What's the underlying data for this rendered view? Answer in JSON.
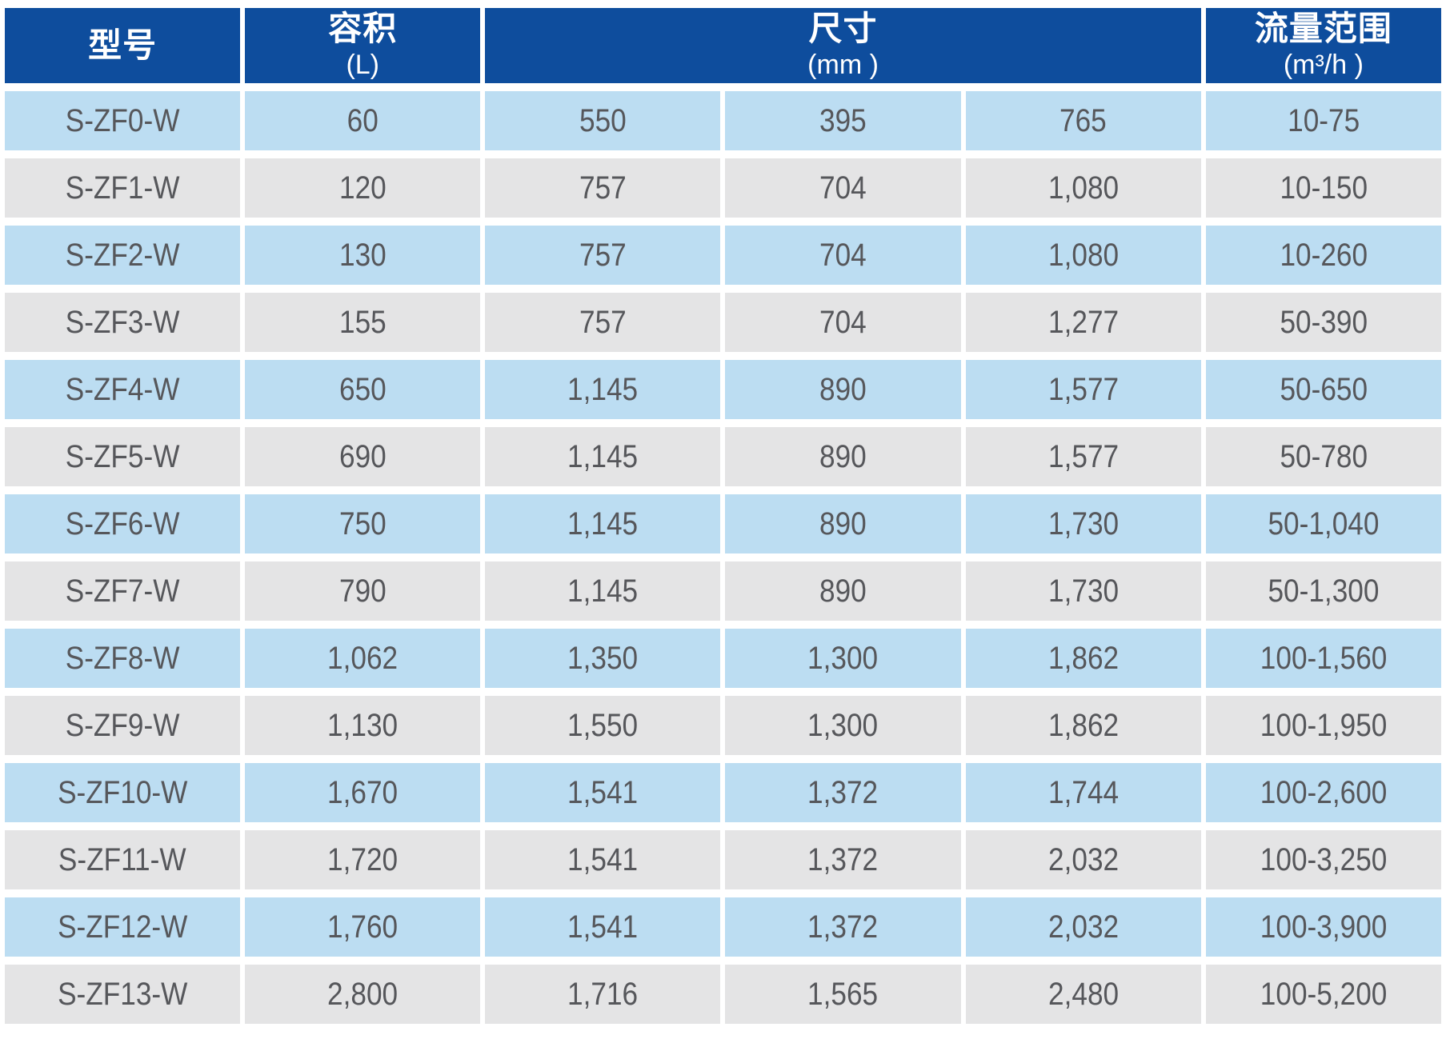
{
  "table": {
    "colors": {
      "header_bg": "#0E4D9D",
      "row_blue": "#BCDDF2",
      "row_gray": "#E4E4E5",
      "cell_text": "#56575B",
      "header_text": "#FFFFFF"
    },
    "header": {
      "columns": [
        {
          "title": "型号",
          "subtitle": "",
          "colspan": "1"
        },
        {
          "title": "容积",
          "subtitle": "(L)",
          "colspan": "1"
        },
        {
          "title": "尺寸",
          "subtitle": "(mm )",
          "colspan": "3"
        },
        {
          "title": "流量范围",
          "subtitle": "(m³/h )",
          "colspan": "1"
        }
      ]
    },
    "rows": [
      [
        "S-ZF0-W",
        "60",
        "550",
        "395",
        "765",
        "10-75"
      ],
      [
        "S-ZF1-W",
        "120",
        "757",
        "704",
        "1,080",
        "10-150"
      ],
      [
        "S-ZF2-W",
        "130",
        "757",
        "704",
        "1,080",
        "10-260"
      ],
      [
        "S-ZF3-W",
        "155",
        "757",
        "704",
        "1,277",
        "50-390"
      ],
      [
        "S-ZF4-W",
        "650",
        "1,145",
        "890",
        "1,577",
        "50-650"
      ],
      [
        "S-ZF5-W",
        "690",
        "1,145",
        "890",
        "1,577",
        "50-780"
      ],
      [
        "S-ZF6-W",
        "750",
        "1,145",
        "890",
        "1,730",
        "50-1,040"
      ],
      [
        "S-ZF7-W",
        "790",
        "1,145",
        "890",
        "1,730",
        "50-1,300"
      ],
      [
        "S-ZF8-W",
        "1,062",
        "1,350",
        "1,300",
        "1,862",
        "100-1,560"
      ],
      [
        "S-ZF9-W",
        "1,130",
        "1,550",
        "1,300",
        "1,862",
        "100-1,950"
      ],
      [
        "S-ZF10-W",
        "1,670",
        "1,541",
        "1,372",
        "1,744",
        "100-2,600"
      ],
      [
        "S-ZF11-W",
        "1,720",
        "1,541",
        "1,372",
        "2,032",
        "100-3,250"
      ],
      [
        "S-ZF12-W",
        "1,760",
        "1,541",
        "1,372",
        "2,032",
        "100-3,900"
      ],
      [
        "S-ZF13-W",
        "2,800",
        "1,716",
        "1,565",
        "2,480",
        "100-5,200"
      ]
    ]
  }
}
